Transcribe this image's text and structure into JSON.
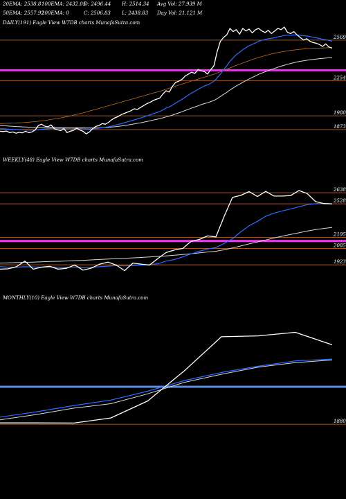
{
  "header": {
    "row1": [
      {
        "label": "20EMA: 2538.8"
      },
      {
        "label": "100EMA: 2432.05"
      },
      {
        "label": "O: 2496.44"
      },
      {
        "label": "H: 2514.34"
      },
      {
        "label": "Avg Vol: 27.939 M"
      }
    ],
    "row2": [
      {
        "label": "50EMA: 2557.92"
      },
      {
        "label": "200EMA: 0"
      },
      {
        "label": "C: 2506.83"
      },
      {
        "label": "L: 2438.83"
      },
      {
        "label": "Day Vol: 21.121 M"
      }
    ]
  },
  "colors": {
    "price": "#ffffff",
    "ema_short": "#2f6bff",
    "ema_long": "#d9d9d9",
    "ema_slow": "#c07020",
    "level": "#a35a2a",
    "support_magenta": "#e040e0",
    "support_blue": "#5a8ee0"
  },
  "chart_data": [
    {
      "type": "line",
      "title": "DAILY(191) Eagle  View  W7DB charts MunafaSutra.com",
      "ylim": [
        1760,
        2730
      ],
      "levels": [
        2569,
        2254,
        1980,
        1873
      ],
      "highlight_level": 2335,
      "series": [
        {
          "role": "price",
          "values": [
            1860,
            1858,
            1862,
            1850,
            1855,
            1845,
            1852,
            1848,
            1860,
            1850,
            1855,
            1870,
            1905,
            1915,
            1900,
            1895,
            1910,
            1880,
            1872,
            1865,
            1882,
            1850,
            1860,
            1868,
            1885,
            1870,
            1860,
            1840,
            1855,
            1880,
            1898,
            1905,
            1920,
            1915,
            1930,
            1950,
            1965,
            1975,
            1990,
            2000,
            2010,
            2020,
            2035,
            2030,
            2045,
            2060,
            2075,
            2085,
            2100,
            2110,
            2118,
            2150,
            2175,
            2165,
            2210,
            2240,
            2250,
            2265,
            2290,
            2305,
            2320,
            2310,
            2340,
            2330,
            2325,
            2305,
            2340,
            2370,
            2480,
            2560,
            2590,
            2610,
            2660,
            2635,
            2650,
            2615,
            2660,
            2640,
            2655,
            2625,
            2650,
            2660,
            2640,
            2628,
            2645,
            2620,
            2640,
            2660,
            2650,
            2670,
            2630,
            2620,
            2635,
            2610,
            2590,
            2570,
            2580,
            2560,
            2550,
            2545,
            2535,
            2520,
            2540,
            2515,
            2507
          ]
        },
        {
          "role": "ema_short",
          "values": [
            1880,
            1879,
            1878,
            1876,
            1875,
            1874,
            1873,
            1871,
            1870,
            1870,
            1869,
            1870,
            1873,
            1876,
            1878,
            1880,
            1882,
            1882,
            1882,
            1881,
            1881,
            1880,
            1880,
            1880,
            1881,
            1881,
            1880,
            1878,
            1878,
            1879,
            1881,
            1884,
            1888,
            1891,
            1895,
            1901,
            1907,
            1913,
            1920,
            1927,
            1934,
            1941,
            1949,
            1956,
            1963,
            1971,
            1980,
            1988,
            1997,
            2006,
            2014,
            2026,
            2040,
            2050,
            2064,
            2080,
            2094,
            2109,
            2126,
            2142,
            2158,
            2170,
            2186,
            2200,
            2212,
            2221,
            2234,
            2248,
            2275,
            2306,
            2338,
            2369,
            2404,
            2431,
            2456,
            2474,
            2494,
            2510,
            2525,
            2536,
            2548,
            2560,
            2568,
            2574,
            2580,
            2583,
            2588,
            2594,
            2599,
            2605,
            2607,
            2607,
            2609,
            2609,
            2607,
            2603,
            2601,
            2597,
            2592,
            2587,
            2582,
            2576,
            2572,
            2566,
            2560
          ]
        },
        {
          "role": "ema_long",
          "values": [
            1905,
            1903,
            1902,
            1900,
            1899,
            1897,
            1896,
            1894,
            1893,
            1892,
            1890,
            1889,
            1890,
            1890,
            1891,
            1891,
            1892,
            1891,
            1891,
            1890,
            1890,
            1889,
            1888,
            1888,
            1888,
            1888,
            1887,
            1886,
            1886,
            1886,
            1886,
            1887,
            1888,
            1889,
            1890,
            1893,
            1895,
            1898,
            1901,
            1905,
            1909,
            1913,
            1918,
            1922,
            1926,
            1931,
            1936,
            1941,
            1947,
            1953,
            1958,
            1965,
            1972,
            1978,
            1986,
            1995,
            2003,
            2012,
            2022,
            2031,
            2041,
            2049,
            2058,
            2067,
            2075,
            2082,
            2091,
            2100,
            2114,
            2130,
            2147,
            2163,
            2181,
            2197,
            2213,
            2226,
            2241,
            2254,
            2267,
            2279,
            2291,
            2303,
            2313,
            2323,
            2332,
            2341,
            2349,
            2358,
            2366,
            2374,
            2381,
            2387,
            2393,
            2399,
            2404,
            2408,
            2412,
            2416,
            2419,
            2422,
            2425,
            2427,
            2430,
            2432,
            2432
          ]
        },
        {
          "role": "ema_slow",
          "values": [
            1920,
            1921,
            1922,
            1923,
            1924,
            1925,
            1926,
            1927,
            1929,
            1931,
            1933,
            1935,
            1938,
            1941,
            1944,
            1948,
            1952,
            1956,
            1960,
            1964,
            1969,
            1974,
            1979,
            1985,
            1991,
            1997,
            2003,
            2010,
            2017,
            2024,
            2031,
            2038,
            2045,
            2052,
            2059,
            2066,
            2073,
            2080,
            2087,
            2094,
            2101,
            2108,
            2115,
            2122,
            2129,
            2136,
            2143,
            2150,
            2157,
            2164,
            2171,
            2179,
            2187,
            2195,
            2203,
            2211,
            2219,
            2227,
            2235,
            2243,
            2251,
            2258,
            2266,
            2274,
            2281,
            2288,
            2296,
            2304,
            2313,
            2323,
            2333,
            2343,
            2353,
            2363,
            2373,
            2382,
            2391,
            2400,
            2409,
            2418,
            2426,
            2434,
            2441,
            2448,
            2455,
            2461,
            2467,
            2472,
            2477,
            2481,
            2485,
            2489,
            2492,
            2495,
            2498,
            2500,
            2502,
            2504,
            2505,
            2506,
            2507,
            2508,
            2509,
            2510,
            2510
          ]
        }
      ]
    },
    {
      "type": "line",
      "title": "WEEKLY(48) Eagle  View  W7DB charts MunafaSutra.com",
      "ylim": [
        1800,
        2900
      ],
      "levels": [
        2638,
        2528,
        2195,
        2085,
        1923
      ],
      "highlight_level": 2160,
      "series": [
        {
          "role": "price",
          "values": [
            1880,
            1883,
            1905,
            1960,
            1880,
            1900,
            1908,
            1880,
            1888,
            1922,
            1870,
            1890,
            1930,
            1950,
            1920,
            1865,
            1940,
            1930,
            1920,
            1985,
            2045,
            2070,
            2085,
            2155,
            2175,
            2210,
            2200,
            2405,
            2592,
            2612,
            2650,
            2600,
            2652,
            2605,
            2605,
            2610,
            2660,
            2630,
            2550,
            2530,
            2528
          ]
        },
        {
          "role": "ema_short",
          "values": [
            1905,
            1900,
            1900,
            1904,
            1902,
            1901,
            1902,
            1900,
            1899,
            1902,
            1899,
            1900,
            1904,
            1910,
            1915,
            1912,
            1916,
            1920,
            1926,
            1933,
            1960,
            1975,
            2002,
            2032,
            2058,
            2080,
            2095,
            2135,
            2182,
            2250,
            2310,
            2355,
            2405,
            2435,
            2458,
            2478,
            2499,
            2520,
            2530,
            2532,
            2528
          ]
        },
        {
          "role": "ema_long",
          "values": [
            1940,
            1942,
            1945,
            1948,
            1950,
            1953,
            1956,
            1958,
            1961,
            1965,
            1968,
            1972,
            1976,
            1980,
            1984,
            1988,
            1992,
            1996,
            2001,
            2006,
            2012,
            2018,
            2025,
            2033,
            2041,
            2050,
            2058,
            2072,
            2090,
            2110,
            2131,
            2150,
            2170,
            2189,
            2207,
            2224,
            2241,
            2258,
            2272,
            2284,
            2294
          ]
        }
      ]
    },
    {
      "type": "line",
      "title": "MONTHLY(10) Eagle  View  W7DB charts MunafaSutra.com",
      "ylim": [
        1780,
        3100
      ],
      "levels": [
        1880
      ],
      "highlight_level": 2300,
      "series": [
        {
          "role": "price",
          "values": [
            1895,
            1895,
            1893,
            1950,
            2140,
            2480,
            2860,
            2870,
            2910,
            2770
          ]
        },
        {
          "role": "ema_short",
          "values": [
            1960,
            2020,
            2090,
            2150,
            2250,
            2370,
            2460,
            2530,
            2590,
            2610
          ]
        },
        {
          "role": "ema_long",
          "values": [
            1930,
            1990,
            2060,
            2110,
            2220,
            2350,
            2440,
            2520,
            2570,
            2600
          ]
        }
      ]
    }
  ]
}
